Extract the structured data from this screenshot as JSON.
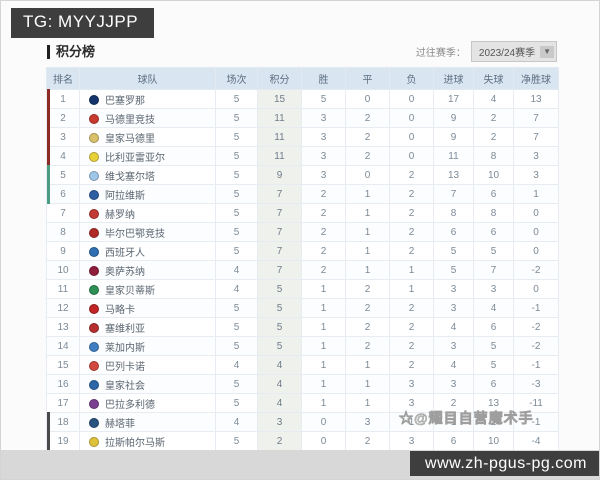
{
  "banners": {
    "tg": "TG: MYYJJPP",
    "site": "www.zh-pgus-pg.com"
  },
  "header": {
    "title": "积分榜",
    "season_label": "过往赛季：",
    "season_value": "2023/24赛季",
    "dropdown_icon": "chevron-down-icon"
  },
  "watermark": "☆@耀目自营魔术手",
  "colors": {
    "header_bg": "#d9e5f1",
    "zone_ucl": "#8d2a24",
    "zone_uel": "#4d9c82",
    "zone_rel": "#4a4a4a",
    "banner_bg": "#3e3e3e",
    "points_col_bg": "#eff1ec"
  },
  "standings": {
    "columns": [
      "排名",
      "球队",
      "场次",
      "积分",
      "胜",
      "平",
      "负",
      "进球",
      "失球",
      "净胜球"
    ],
    "rows": [
      {
        "rank": 1,
        "team": "巴塞罗那",
        "badge": "#14356b",
        "played": 5,
        "points": 15,
        "win": 5,
        "draw": 0,
        "loss": 0,
        "gf": 17,
        "ga": 4,
        "gd": 13,
        "zone": "ucl"
      },
      {
        "rank": 2,
        "team": "马德里竞技",
        "badge": "#c8392f",
        "played": 5,
        "points": 11,
        "win": 3,
        "draw": 2,
        "loss": 0,
        "gf": 9,
        "ga": 2,
        "gd": 7,
        "zone": "ucl"
      },
      {
        "rank": 3,
        "team": "皇家马德里",
        "badge": "#d9c06a",
        "played": 5,
        "points": 11,
        "win": 3,
        "draw": 2,
        "loss": 0,
        "gf": 9,
        "ga": 2,
        "gd": 7,
        "zone": "ucl"
      },
      {
        "rank": 4,
        "team": "比利亚雷亚尔",
        "badge": "#e8d23a",
        "played": 5,
        "points": 11,
        "win": 3,
        "draw": 2,
        "loss": 0,
        "gf": 11,
        "ga": 8,
        "gd": 3,
        "zone": "ucl"
      },
      {
        "rank": 5,
        "team": "维戈塞尔塔",
        "badge": "#9fc6e8",
        "played": 5,
        "points": 9,
        "win": 3,
        "draw": 0,
        "loss": 2,
        "gf": 13,
        "ga": 10,
        "gd": 3,
        "zone": "uel"
      },
      {
        "rank": 6,
        "team": "阿拉维斯",
        "badge": "#2f5fa3",
        "played": 5,
        "points": 7,
        "win": 2,
        "draw": 1,
        "loss": 2,
        "gf": 7,
        "ga": 6,
        "gd": 1,
        "zone": "uel"
      },
      {
        "rank": 7,
        "team": "赫罗纳",
        "badge": "#c23b33",
        "played": 5,
        "points": 7,
        "win": 2,
        "draw": 1,
        "loss": 2,
        "gf": 8,
        "ga": 8,
        "gd": 0,
        "zone": ""
      },
      {
        "rank": 8,
        "team": "毕尔巴鄂竞技",
        "badge": "#b02a25",
        "played": 5,
        "points": 7,
        "win": 2,
        "draw": 1,
        "loss": 2,
        "gf": 6,
        "ga": 6,
        "gd": 0,
        "zone": ""
      },
      {
        "rank": 9,
        "team": "西班牙人",
        "badge": "#2f6fb2",
        "played": 5,
        "points": 7,
        "win": 2,
        "draw": 1,
        "loss": 2,
        "gf": 5,
        "ga": 5,
        "gd": 0,
        "zone": ""
      },
      {
        "rank": 10,
        "team": "奥萨苏纳",
        "badge": "#8f1d3c",
        "played": 4,
        "points": 7,
        "win": 2,
        "draw": 1,
        "loss": 1,
        "gf": 5,
        "ga": 7,
        "gd": -2,
        "zone": ""
      },
      {
        "rank": 11,
        "team": "皇家贝蒂斯",
        "badge": "#2e8f55",
        "played": 4,
        "points": 5,
        "win": 1,
        "draw": 2,
        "loss": 1,
        "gf": 3,
        "ga": 3,
        "gd": 0,
        "zone": ""
      },
      {
        "rank": 12,
        "team": "马略卡",
        "badge": "#c02424",
        "played": 5,
        "points": 5,
        "win": 1,
        "draw": 2,
        "loss": 2,
        "gf": 3,
        "ga": 4,
        "gd": -1,
        "zone": ""
      },
      {
        "rank": 13,
        "team": "塞维利亚",
        "badge": "#b52f2f",
        "played": 5,
        "points": 5,
        "win": 1,
        "draw": 2,
        "loss": 2,
        "gf": 4,
        "ga": 6,
        "gd": -2,
        "zone": ""
      },
      {
        "rank": 14,
        "team": "莱加内斯",
        "badge": "#3f7fc1",
        "played": 5,
        "points": 5,
        "win": 1,
        "draw": 2,
        "loss": 2,
        "gf": 3,
        "ga": 5,
        "gd": -2,
        "zone": ""
      },
      {
        "rank": 15,
        "team": "巴列卡诺",
        "badge": "#d2483f",
        "played": 4,
        "points": 4,
        "win": 1,
        "draw": 1,
        "loss": 2,
        "gf": 4,
        "ga": 5,
        "gd": -1,
        "zone": ""
      },
      {
        "rank": 16,
        "team": "皇家社会",
        "badge": "#2b66a8",
        "played": 5,
        "points": 4,
        "win": 1,
        "draw": 1,
        "loss": 3,
        "gf": 3,
        "ga": 6,
        "gd": -3,
        "zone": ""
      },
      {
        "rank": 17,
        "team": "巴拉多利德",
        "badge": "#7b3f8f",
        "played": 5,
        "points": 4,
        "win": 1,
        "draw": 1,
        "loss": 3,
        "gf": 2,
        "ga": 13,
        "gd": -11,
        "zone": ""
      },
      {
        "rank": 18,
        "team": "赫塔菲",
        "badge": "#27537f",
        "played": 4,
        "points": 3,
        "win": 0,
        "draw": 3,
        "loss": 1,
        "gf": 1,
        "ga": 2,
        "gd": -1,
        "zone": "rel"
      },
      {
        "rank": 19,
        "team": "拉斯帕尔马斯",
        "badge": "#e0c23a",
        "played": 5,
        "points": 2,
        "win": 0,
        "draw": 2,
        "loss": 3,
        "gf": 6,
        "ga": 10,
        "gd": -4,
        "zone": "rel"
      }
    ]
  }
}
